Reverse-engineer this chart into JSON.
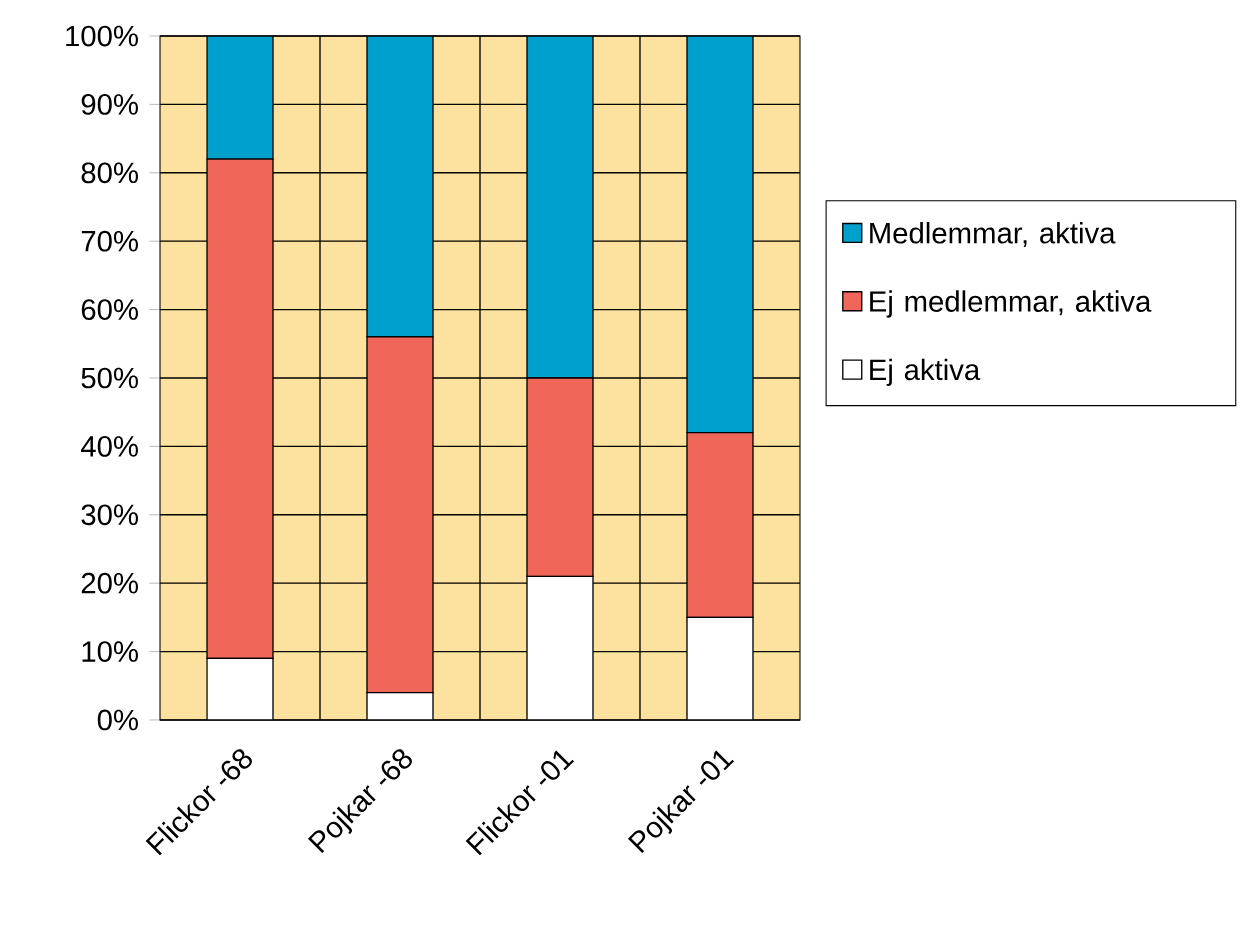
{
  "chart_data": {
    "type": "bar",
    "stacked": true,
    "categories": [
      "Flickor -68",
      "Pojkar -68",
      "Flickor -01",
      "Pojkar -01"
    ],
    "series": [
      {
        "name": "Ej aktiva",
        "color": "#ffffff",
        "values": [
          9,
          4,
          21,
          15
        ]
      },
      {
        "name": "Ej medlemmar, aktiva",
        "color": "#f0675a",
        "values": [
          73,
          52,
          29,
          27
        ]
      },
      {
        "name": "Medlemmar, aktiva",
        "color": "#00a0cc",
        "values": [
          18,
          44,
          50,
          58
        ]
      }
    ],
    "ylim": [
      0,
      100
    ],
    "yticks": [
      {
        "value": 0,
        "label": "0%"
      },
      {
        "value": 10,
        "label": "10%"
      },
      {
        "value": 20,
        "label": "20%"
      },
      {
        "value": 30,
        "label": "30%"
      },
      {
        "value": 40,
        "label": "40%"
      },
      {
        "value": 50,
        "label": "50%"
      },
      {
        "value": 60,
        "label": "60%"
      },
      {
        "value": 70,
        "label": "70%"
      },
      {
        "value": 80,
        "label": "80%"
      },
      {
        "value": 90,
        "label": "90%"
      },
      {
        "value": 100,
        "label": "100%"
      }
    ],
    "grid": true,
    "legend": "right"
  }
}
